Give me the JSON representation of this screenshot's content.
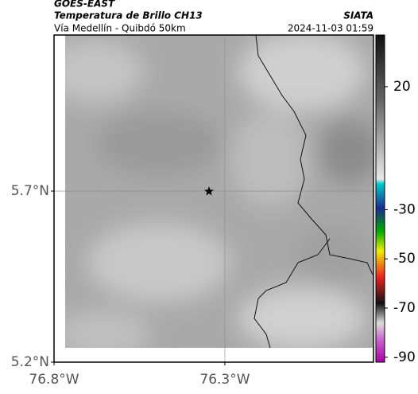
{
  "header": {
    "title": "GOES-EAST",
    "subtitle": "Temperatura de Brillo CH13",
    "source": "SIATA",
    "location": "Vía Medellín - Quibdó 50km",
    "datetime": "2024-11-03 01:59"
  },
  "map": {
    "lat_range": [
      5.2,
      6.156
    ],
    "lon_range": [
      -76.8,
      -75.865
    ],
    "lat_ticks": [
      {
        "value": 5.7,
        "label": "5.7°N"
      },
      {
        "value": 5.2,
        "label": "5.2°N"
      }
    ],
    "lon_ticks": [
      {
        "value": -76.8,
        "label": "76.8°W"
      },
      {
        "value": -76.3,
        "label": "76.3°W"
      }
    ],
    "colorbar_range": [
      41,
      -92
    ],
    "colorbar_ticks": [
      20,
      -30,
      -50,
      -70,
      -90
    ]
  }
}
